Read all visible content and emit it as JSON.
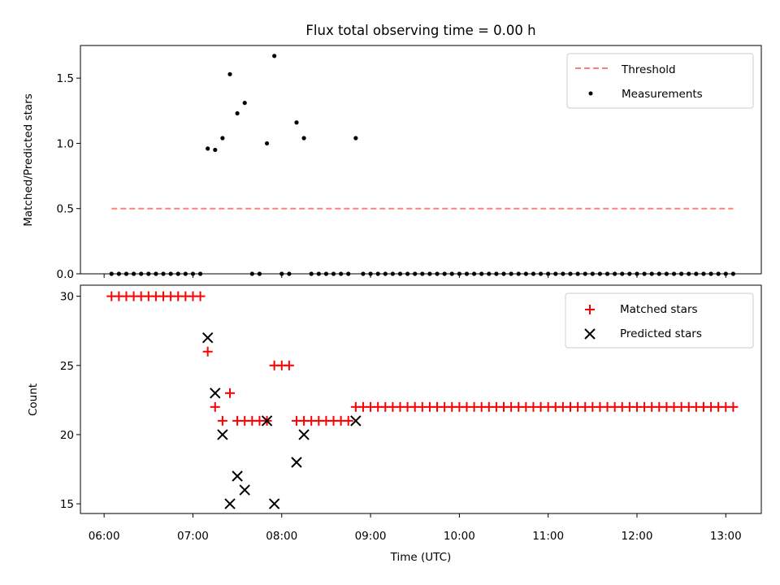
{
  "chart_data": [
    {
      "type": "scatter",
      "title": "Flux total observing time = 0.00 h",
      "xlabel": "",
      "ylabel": "Matched/Predicted stars",
      "ylim": [
        0,
        1.75
      ],
      "yticks": [
        "0.0",
        "0.5",
        "1.0",
        "1.5"
      ],
      "ytick_values": [
        0,
        0.5,
        1.0,
        1.5
      ],
      "xlim": [
        "05:44",
        "13:24"
      ],
      "legend_position": "upper right",
      "threshold": {
        "name": "Threshold",
        "value": 0.5,
        "x_start": "06:05",
        "x_end": "13:05",
        "color": "#ff7f7f"
      },
      "series": [
        {
          "name": "Measurements",
          "color": "#000000",
          "points": [
            [
              "06:05",
              0
            ],
            [
              "06:10",
              0
            ],
            [
              "06:15",
              0
            ],
            [
              "06:20",
              0
            ],
            [
              "06:25",
              0
            ],
            [
              "06:30",
              0
            ],
            [
              "06:35",
              0
            ],
            [
              "06:40",
              0
            ],
            [
              "06:45",
              0
            ],
            [
              "06:50",
              0
            ],
            [
              "06:55",
              0
            ],
            [
              "07:00",
              0
            ],
            [
              "07:05",
              0
            ],
            [
              "07:10",
              0.96
            ],
            [
              "07:15",
              0.95
            ],
            [
              "07:20",
              1.04
            ],
            [
              "07:25",
              1.53
            ],
            [
              "07:30",
              1.23
            ],
            [
              "07:35",
              1.31
            ],
            [
              "07:40",
              0
            ],
            [
              "07:45",
              0
            ],
            [
              "07:50",
              1.0
            ],
            [
              "07:55",
              1.67
            ],
            [
              "08:00",
              0
            ],
            [
              "08:05",
              0
            ],
            [
              "08:10",
              1.16
            ],
            [
              "08:15",
              1.04
            ],
            [
              "08:20",
              0
            ],
            [
              "08:25",
              0
            ],
            [
              "08:30",
              0
            ],
            [
              "08:35",
              0
            ],
            [
              "08:40",
              0
            ],
            [
              "08:45",
              0
            ],
            [
              "08:50",
              1.04
            ],
            [
              "08:55",
              0
            ],
            [
              "09:00",
              0
            ],
            [
              "09:05",
              0
            ],
            [
              "09:10",
              0
            ],
            [
              "09:15",
              0
            ],
            [
              "09:20",
              0
            ],
            [
              "09:25",
              0
            ],
            [
              "09:30",
              0
            ],
            [
              "09:35",
              0
            ],
            [
              "09:40",
              0
            ],
            [
              "09:45",
              0
            ],
            [
              "09:50",
              0
            ],
            [
              "09:55",
              0
            ],
            [
              "10:00",
              0
            ],
            [
              "10:05",
              0
            ],
            [
              "10:10",
              0
            ],
            [
              "10:15",
              0
            ],
            [
              "10:20",
              0
            ],
            [
              "10:25",
              0
            ],
            [
              "10:30",
              0
            ],
            [
              "10:35",
              0
            ],
            [
              "10:40",
              0
            ],
            [
              "10:45",
              0
            ],
            [
              "10:50",
              0
            ],
            [
              "10:55",
              0
            ],
            [
              "11:00",
              0
            ],
            [
              "11:05",
              0
            ],
            [
              "11:10",
              0
            ],
            [
              "11:15",
              0
            ],
            [
              "11:20",
              0
            ],
            [
              "11:25",
              0
            ],
            [
              "11:30",
              0
            ],
            [
              "11:35",
              0
            ],
            [
              "11:40",
              0
            ],
            [
              "11:45",
              0
            ],
            [
              "11:50",
              0
            ],
            [
              "11:55",
              0
            ],
            [
              "12:00",
              0
            ],
            [
              "12:05",
              0
            ],
            [
              "12:10",
              0
            ],
            [
              "12:15",
              0
            ],
            [
              "12:20",
              0
            ],
            [
              "12:25",
              0
            ],
            [
              "12:30",
              0
            ],
            [
              "12:35",
              0
            ],
            [
              "12:40",
              0
            ],
            [
              "12:45",
              0
            ],
            [
              "12:50",
              0
            ],
            [
              "12:55",
              0
            ],
            [
              "13:00",
              0
            ],
            [
              "13:05",
              0
            ]
          ]
        }
      ]
    },
    {
      "type": "scatter",
      "title": "",
      "xlabel": "Time (UTC)",
      "ylabel": "Count",
      "ylim": [
        14.3,
        30.8
      ],
      "yticks": [
        "15",
        "20",
        "25",
        "30"
      ],
      "ytick_values": [
        15,
        20,
        25,
        30
      ],
      "xlim": [
        "05:44",
        "13:24"
      ],
      "xticks": [
        "06:00",
        "07:00",
        "08:00",
        "09:00",
        "10:00",
        "11:00",
        "12:00",
        "13:00"
      ],
      "legend_position": "upper right",
      "series": [
        {
          "name": "Matched stars",
          "marker": "plus",
          "color": "#ff0000",
          "points": [
            [
              "06:05",
              30
            ],
            [
              "06:10",
              30
            ],
            [
              "06:15",
              30
            ],
            [
              "06:20",
              30
            ],
            [
              "06:25",
              30
            ],
            [
              "06:30",
              30
            ],
            [
              "06:35",
              30
            ],
            [
              "06:40",
              30
            ],
            [
              "06:45",
              30
            ],
            [
              "06:50",
              30
            ],
            [
              "06:55",
              30
            ],
            [
              "07:00",
              30
            ],
            [
              "07:05",
              30
            ],
            [
              "07:10",
              26
            ],
            [
              "07:15",
              22
            ],
            [
              "07:20",
              21
            ],
            [
              "07:25",
              23
            ],
            [
              "07:30",
              21
            ],
            [
              "07:35",
              21
            ],
            [
              "07:40",
              21
            ],
            [
              "07:45",
              21
            ],
            [
              "07:50",
              21
            ],
            [
              "07:55",
              25
            ],
            [
              "08:00",
              25
            ],
            [
              "08:05",
              25
            ],
            [
              "08:10",
              21
            ],
            [
              "08:15",
              21
            ],
            [
              "08:20",
              21
            ],
            [
              "08:25",
              21
            ],
            [
              "08:30",
              21
            ],
            [
              "08:35",
              21
            ],
            [
              "08:40",
              21
            ],
            [
              "08:45",
              21
            ],
            [
              "08:50",
              22
            ],
            [
              "08:55",
              22
            ],
            [
              "09:00",
              22
            ],
            [
              "09:05",
              22
            ],
            [
              "09:10",
              22
            ],
            [
              "09:15",
              22
            ],
            [
              "09:20",
              22
            ],
            [
              "09:25",
              22
            ],
            [
              "09:30",
              22
            ],
            [
              "09:35",
              22
            ],
            [
              "09:40",
              22
            ],
            [
              "09:45",
              22
            ],
            [
              "09:50",
              22
            ],
            [
              "09:55",
              22
            ],
            [
              "10:00",
              22
            ],
            [
              "10:05",
              22
            ],
            [
              "10:10",
              22
            ],
            [
              "10:15",
              22
            ],
            [
              "10:20",
              22
            ],
            [
              "10:25",
              22
            ],
            [
              "10:30",
              22
            ],
            [
              "10:35",
              22
            ],
            [
              "10:40",
              22
            ],
            [
              "10:45",
              22
            ],
            [
              "10:50",
              22
            ],
            [
              "10:55",
              22
            ],
            [
              "11:00",
              22
            ],
            [
              "11:05",
              22
            ],
            [
              "11:10",
              22
            ],
            [
              "11:15",
              22
            ],
            [
              "11:20",
              22
            ],
            [
              "11:25",
              22
            ],
            [
              "11:30",
              22
            ],
            [
              "11:35",
              22
            ],
            [
              "11:40",
              22
            ],
            [
              "11:45",
              22
            ],
            [
              "11:50",
              22
            ],
            [
              "11:55",
              22
            ],
            [
              "12:00",
              22
            ],
            [
              "12:05",
              22
            ],
            [
              "12:10",
              22
            ],
            [
              "12:15",
              22
            ],
            [
              "12:20",
              22
            ],
            [
              "12:25",
              22
            ],
            [
              "12:30",
              22
            ],
            [
              "12:35",
              22
            ],
            [
              "12:40",
              22
            ],
            [
              "12:45",
              22
            ],
            [
              "12:50",
              22
            ],
            [
              "12:55",
              22
            ],
            [
              "13:00",
              22
            ],
            [
              "13:05",
              22
            ]
          ]
        },
        {
          "name": "Predicted stars",
          "marker": "x",
          "color": "#000000",
          "points": [
            [
              "07:10",
              27
            ],
            [
              "07:15",
              23
            ],
            [
              "07:20",
              20
            ],
            [
              "07:25",
              15
            ],
            [
              "07:30",
              17
            ],
            [
              "07:35",
              16
            ],
            [
              "07:50",
              21
            ],
            [
              "07:55",
              15
            ],
            [
              "08:10",
              18
            ],
            [
              "08:15",
              20
            ],
            [
              "08:50",
              21
            ]
          ]
        }
      ]
    }
  ]
}
